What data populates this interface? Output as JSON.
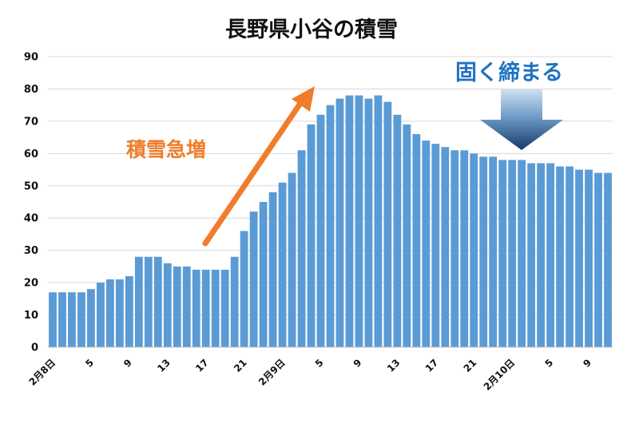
{
  "chart_data": {
    "type": "bar",
    "title": "長野県小谷の積雪",
    "xlabel": "",
    "ylabel": "",
    "ylim": [
      0,
      90
    ],
    "yticks": [
      0,
      10,
      20,
      30,
      40,
      50,
      60,
      70,
      80,
      90
    ],
    "grid": true,
    "bar_color": "#5b9bd5",
    "values": [
      17,
      17,
      17,
      17,
      18,
      20,
      21,
      21,
      22,
      28,
      28,
      28,
      26,
      25,
      25,
      24,
      24,
      24,
      24,
      28,
      36,
      42,
      45,
      48,
      51,
      54,
      61,
      69,
      72,
      75,
      77,
      78,
      78,
      77,
      78,
      76,
      72,
      69,
      66,
      64,
      63,
      62,
      61,
      61,
      60,
      59,
      59,
      58,
      58,
      58,
      57,
      57,
      57,
      56,
      56,
      55,
      55,
      54,
      54
    ],
    "xtick_labels": [
      {
        "index": 0,
        "label": "2月8日"
      },
      {
        "index": 4,
        "label": "5"
      },
      {
        "index": 8,
        "label": "9"
      },
      {
        "index": 12,
        "label": "13"
      },
      {
        "index": 16,
        "label": "17"
      },
      {
        "index": 20,
        "label": "21"
      },
      {
        "index": 24,
        "label": "2月9日"
      },
      {
        "index": 28,
        "label": "5"
      },
      {
        "index": 32,
        "label": "9"
      },
      {
        "index": 36,
        "label": "13"
      },
      {
        "index": 40,
        "label": "17"
      },
      {
        "index": 44,
        "label": "21"
      },
      {
        "index": 48,
        "label": "2月10日"
      },
      {
        "index": 52,
        "label": "5"
      },
      {
        "index": 56,
        "label": "9"
      }
    ],
    "annotations": [
      {
        "text": "積雪急増",
        "color": "#ef7d2b",
        "arrow": "up-right"
      },
      {
        "text": "固く締まる",
        "color": "#1f72c2",
        "arrow": "down"
      }
    ]
  }
}
